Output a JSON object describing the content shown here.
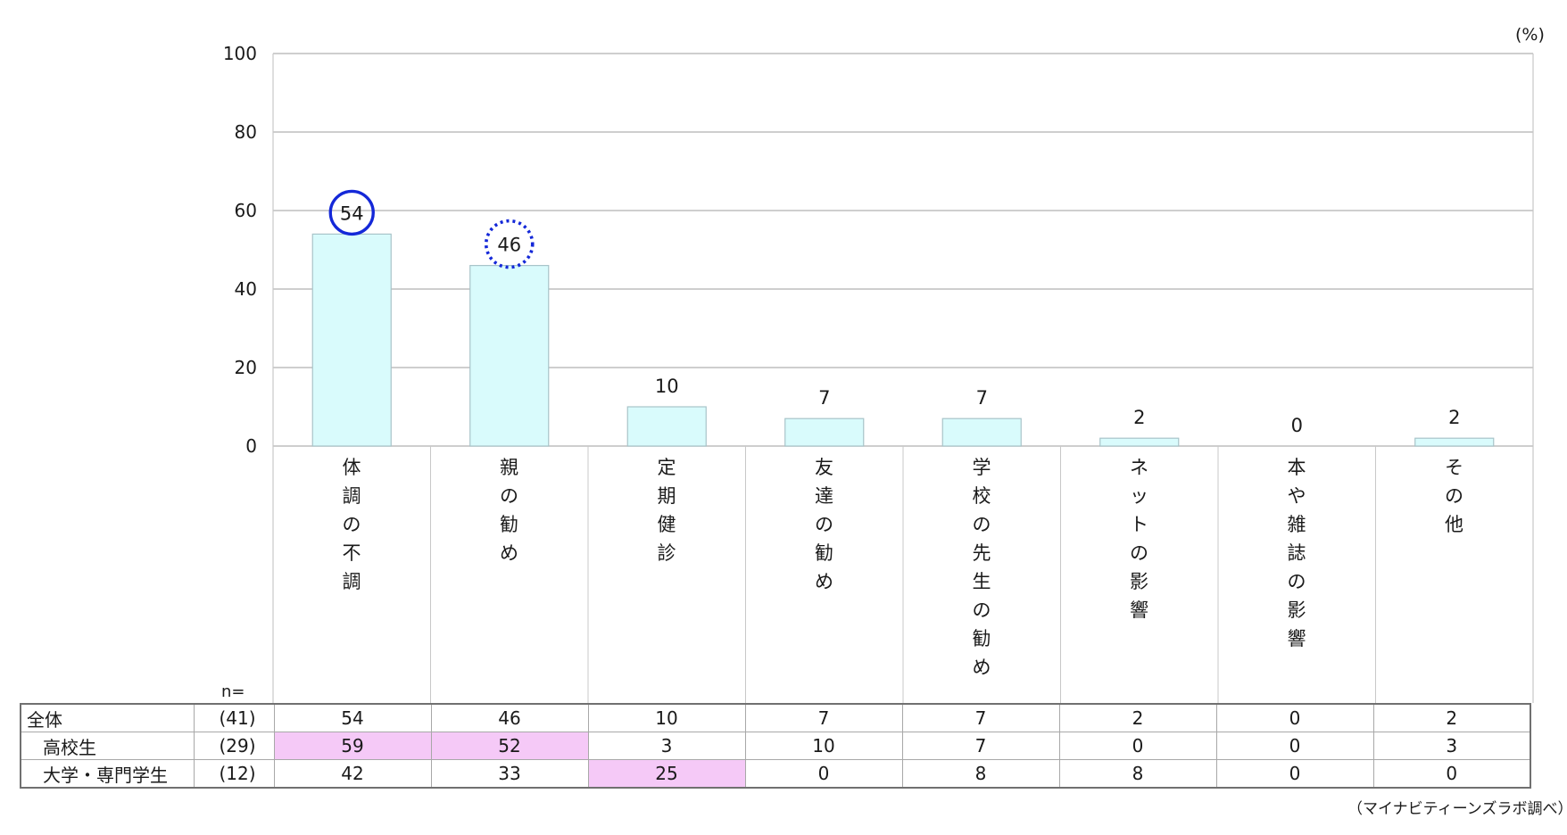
{
  "chart_data": {
    "type": "bar",
    "unit_label": "(%)",
    "ylim": [
      0,
      100
    ],
    "yticks": [
      0,
      20,
      40,
      60,
      80,
      100
    ],
    "grid": true,
    "categories": [
      "体調の不調",
      "親の勧め",
      "定期健診",
      "友達の勧め",
      "学校の先生の勧め",
      "ネットの影響",
      "本や雑誌の影響",
      "その他"
    ],
    "values": [
      54,
      46,
      10,
      7,
      7,
      2,
      0,
      2
    ],
    "bar_color": "#d9fbfc",
    "annotations": [
      {
        "category_index": 0,
        "style": "solid-circle",
        "color": "#1428d8"
      },
      {
        "category_index": 1,
        "style": "dotted-circle",
        "color": "#1428d8"
      }
    ]
  },
  "table": {
    "n_label": "n=",
    "highlight_color": "#f5c9f7",
    "rows": [
      {
        "label": "全体",
        "n": "(41)",
        "values": [
          "54",
          "46",
          "10",
          "7",
          "7",
          "2",
          "0",
          "2"
        ],
        "highlight": []
      },
      {
        "label": "高校生",
        "n": "(29)",
        "values": [
          "59",
          "52",
          "3",
          "10",
          "7",
          "0",
          "0",
          "3"
        ],
        "highlight": [
          0,
          1
        ]
      },
      {
        "label": "大学・専門学生",
        "n": "(12)",
        "values": [
          "42",
          "33",
          "25",
          "0",
          "8",
          "8",
          "0",
          "0"
        ],
        "highlight": [
          2
        ]
      }
    ]
  },
  "source": "（マイナビティーンズラボ調べ）"
}
